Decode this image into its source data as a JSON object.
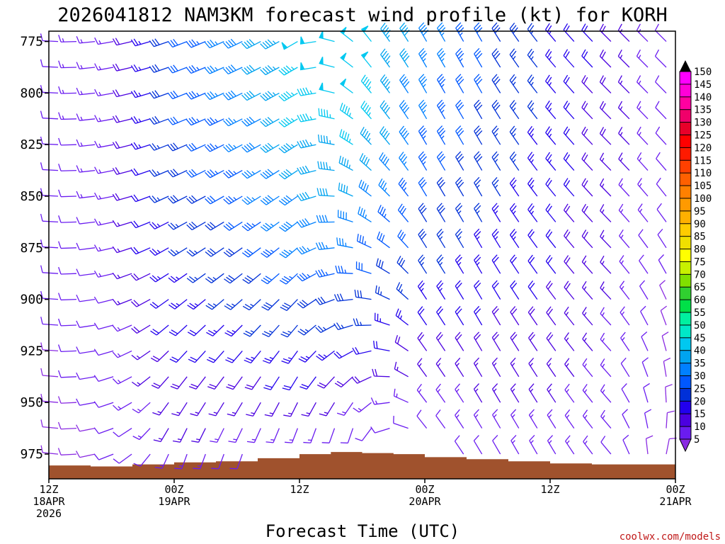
{
  "chart_data": {
    "type": "wind-barb-profile",
    "title": "2026041812 NAM3KM forecast wind profile (kt) for KORH",
    "xlabel": "Forecast Time (UTC)",
    "ylabel": "",
    "credit": "coolwx.com/models",
    "y_axis": {
      "min_pressure_hpa": 770,
      "max_pressure_hpa": 987,
      "ticks": [
        775,
        800,
        825,
        850,
        875,
        900,
        925,
        950,
        975
      ]
    },
    "x_axis": {
      "start_hour": 0,
      "end_hour": 60,
      "ticks": [
        {
          "hour": 0,
          "lines": [
            "12Z",
            "18APR",
            "2026"
          ]
        },
        {
          "hour": 12,
          "lines": [
            "00Z",
            "19APR"
          ]
        },
        {
          "hour": 24,
          "lines": [
            "12Z"
          ]
        },
        {
          "hour": 36,
          "lines": [
            "00Z",
            "20APR"
          ]
        },
        {
          "hour": 48,
          "lines": [
            "12Z"
          ]
        },
        {
          "hour": 60,
          "lines": [
            "00Z",
            "21APR"
          ]
        }
      ]
    },
    "levels_hpa": [
      775,
      787.5,
      800,
      812.5,
      825,
      837.5,
      850,
      862.5,
      875,
      887.5,
      900,
      912.5,
      925,
      937.5,
      950,
      962.5,
      975
    ],
    "wind_speed_kt": {
      "columns_hours": [
        0,
        6,
        12,
        18,
        24,
        30,
        36,
        42,
        48,
        54,
        60
      ],
      "upper_profile_kt": [
        12,
        14,
        30,
        38,
        48,
        50,
        38,
        30,
        25,
        18,
        10
      ],
      "lower_profile_kt": [
        8,
        10,
        14,
        12,
        10,
        6,
        8,
        12,
        14,
        12,
        8
      ]
    },
    "wind_direction_deg": {
      "columns_hours": [
        0,
        6,
        12,
        18,
        24,
        30,
        36,
        42,
        48,
        54,
        60
      ],
      "upper_profile_deg": [
        275,
        260,
        250,
        245,
        240,
        320,
        330,
        330,
        320,
        315,
        315
      ],
      "lower_profile_deg": [
        280,
        250,
        200,
        200,
        195,
        180,
        320,
        330,
        330,
        320,
        20
      ]
    },
    "surface_pressure_hpa": {
      "hours": [
        0,
        4,
        8,
        12,
        16,
        20,
        24,
        27,
        30,
        33,
        36,
        40,
        44,
        48,
        52,
        56,
        60
      ],
      "values": [
        980.5,
        981,
        980,
        979,
        978.5,
        977,
        975,
        974,
        974.5,
        975,
        976.5,
        977.5,
        978.5,
        979.5,
        980,
        980,
        981
      ]
    },
    "terrain_color": "#a0522d",
    "colorbar": {
      "labels": [
        5,
        10,
        15,
        20,
        25,
        30,
        35,
        40,
        45,
        50,
        55,
        60,
        65,
        70,
        75,
        80,
        85,
        90,
        95,
        100,
        105,
        110,
        115,
        120,
        125,
        130,
        135,
        140,
        145,
        150
      ],
      "colors": [
        "#8a2be2",
        "#6a1cf0",
        "#4b00e0",
        "#2200ee",
        "#0030d8",
        "#0058ff",
        "#0080ff",
        "#00a4f0",
        "#00c8f0",
        "#00e8c8",
        "#00f0a0",
        "#00e048",
        "#30d030",
        "#80e000",
        "#c8f000",
        "#ffff00",
        "#f0e000",
        "#ffcc00",
        "#ffb000",
        "#ff9a00",
        "#ff8000",
        "#ff6000",
        "#ff4000",
        "#ff1a00",
        "#ff0000",
        "#e8002a",
        "#f0006a",
        "#ff00a0",
        "#ff00d8",
        "#ff00ff"
      ]
    }
  }
}
